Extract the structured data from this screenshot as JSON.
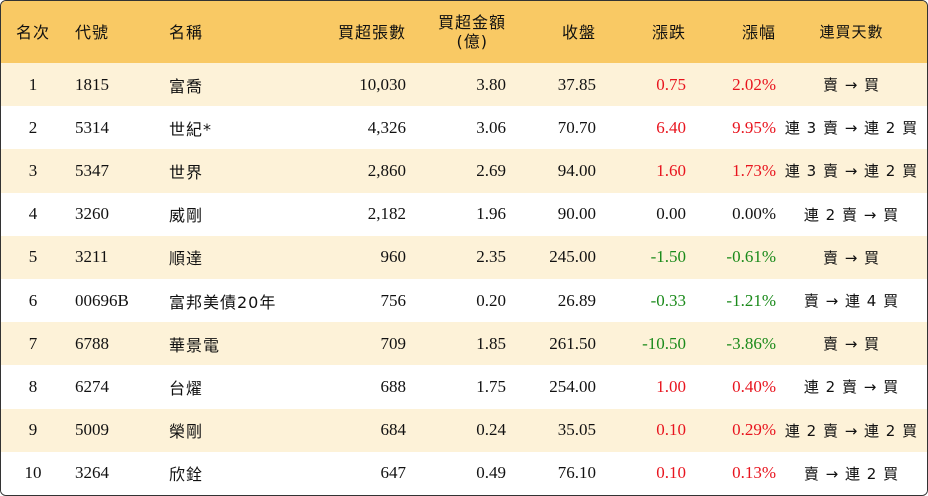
{
  "headers": {
    "rank": "名次",
    "code": "代號",
    "name": "名稱",
    "lots": "買超張數",
    "amount_line1": "買超金額",
    "amount_line2": "(億)",
    "close": "收盤",
    "change": "漲跌",
    "pct": "漲幅",
    "streak": "連買天數"
  },
  "rows": [
    {
      "rank": "1",
      "code": "1815",
      "name": "富喬",
      "lots": "10,030",
      "amount": "3.80",
      "close": "37.85",
      "change": "0.75",
      "pct": "2.02%",
      "dir": "up",
      "streak": "賣 → 買"
    },
    {
      "rank": "2",
      "code": "5314",
      "name": "世紀*",
      "lots": "4,326",
      "amount": "3.06",
      "close": "70.70",
      "change": "6.40",
      "pct": "9.95%",
      "dir": "up",
      "streak": "連 3 賣 → 連 2 買"
    },
    {
      "rank": "3",
      "code": "5347",
      "name": "世界",
      "lots": "2,860",
      "amount": "2.69",
      "close": "94.00",
      "change": "1.60",
      "pct": "1.73%",
      "dir": "up",
      "streak": "連 3 賣 → 連 2 買"
    },
    {
      "rank": "4",
      "code": "3260",
      "name": "威剛",
      "lots": "2,182",
      "amount": "1.96",
      "close": "90.00",
      "change": "0.00",
      "pct": "0.00%",
      "dir": "flat",
      "streak": "連 2 賣 → 買"
    },
    {
      "rank": "5",
      "code": "3211",
      "name": "順達",
      "lots": "960",
      "amount": "2.35",
      "close": "245.00",
      "change": "-1.50",
      "pct": "-0.61%",
      "dir": "down",
      "streak": "賣 → 買"
    },
    {
      "rank": "6",
      "code": "00696B",
      "name": "富邦美債20年",
      "lots": "756",
      "amount": "0.20",
      "close": "26.89",
      "change": "-0.33",
      "pct": "-1.21%",
      "dir": "down",
      "streak": "賣 → 連 4 買"
    },
    {
      "rank": "7",
      "code": "6788",
      "name": "華景電",
      "lots": "709",
      "amount": "1.85",
      "close": "261.50",
      "change": "-10.50",
      "pct": "-3.86%",
      "dir": "down",
      "streak": "賣 → 買"
    },
    {
      "rank": "8",
      "code": "6274",
      "name": "台燿",
      "lots": "688",
      "amount": "1.75",
      "close": "254.00",
      "change": "1.00",
      "pct": "0.40%",
      "dir": "up",
      "streak": "連 2 賣 → 買"
    },
    {
      "rank": "9",
      "code": "5009",
      "name": "榮剛",
      "lots": "684",
      "amount": "0.24",
      "close": "35.05",
      "change": "0.10",
      "pct": "0.29%",
      "dir": "up",
      "streak": "連 2 賣 → 連 2 買"
    },
    {
      "rank": "10",
      "code": "3264",
      "name": "欣銓",
      "lots": "647",
      "amount": "0.49",
      "close": "76.10",
      "change": "0.10",
      "pct": "0.13%",
      "dir": "up",
      "streak": "賣 → 連 2 買"
    }
  ],
  "colors": {
    "header_bg": "#f9c964",
    "odd_row_bg": "#fdf2d8",
    "up": "#e8141e",
    "down": "#1a8a1a"
  }
}
